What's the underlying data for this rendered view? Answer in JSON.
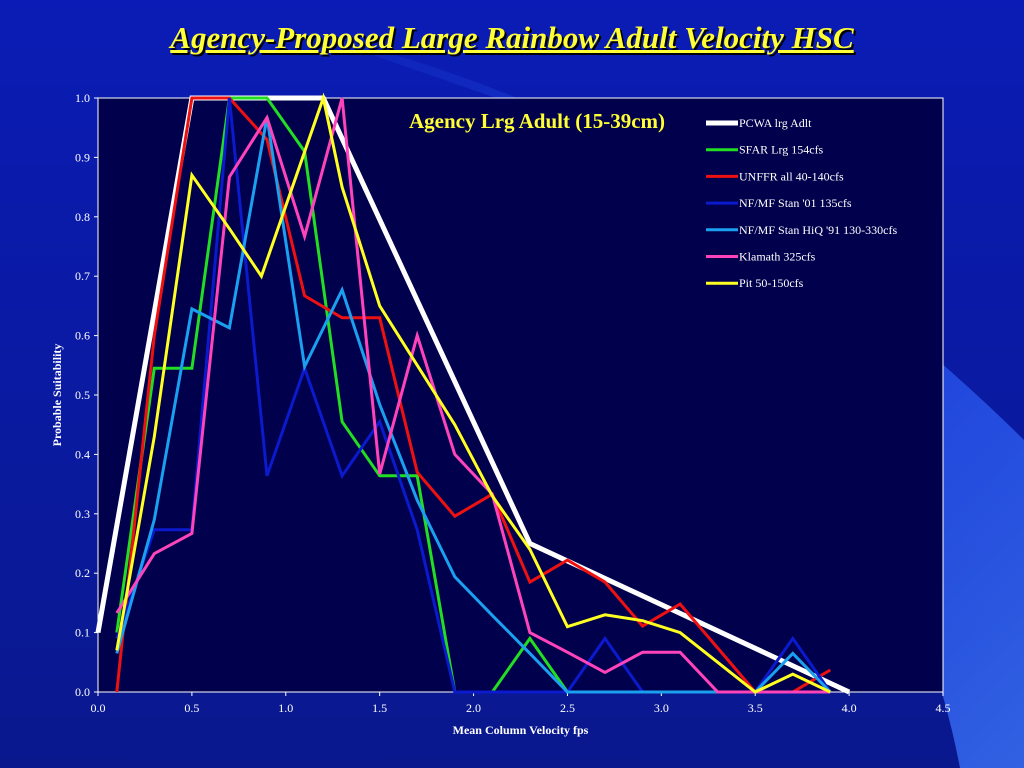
{
  "slide": {
    "title": "Agency-Proposed Large Rainbow Adult Velocity HSC"
  },
  "colors": {
    "background": "#0b1f9c",
    "plot_area": "#00004d",
    "title": "#ffff33",
    "axis_text": "#ffffff"
  },
  "chart_data": {
    "type": "line",
    "title": "Agency Lrg Adult (15-39cm)",
    "xlabel": "Mean Column Velocity fps",
    "ylabel": "Probable Suitability",
    "xlim": [
      0,
      4.5
    ],
    "ylim": [
      0,
      1.0
    ],
    "xticks": [
      "0.0",
      "0.5",
      "1.0",
      "1.5",
      "2.0",
      "2.5",
      "3.0",
      "3.5",
      "4.0",
      "4.5"
    ],
    "yticks": [
      "0.0",
      "0.1",
      "0.2",
      "0.3",
      "0.4",
      "0.5",
      "0.6",
      "0.7",
      "0.8",
      "0.9",
      "1.0"
    ],
    "grid": false,
    "legend_position": "top-right",
    "series": [
      {
        "name": "PCWA lrg Adlt",
        "color": "#ffffff",
        "x": [
          0,
          0.5,
          1.2,
          2.3,
          4.0
        ],
        "y": [
          0.1,
          1.0,
          1.0,
          0.25,
          0
        ]
      },
      {
        "name": "SFAR Lrg  154cfs",
        "color": "#22dd22",
        "x": [
          0.1,
          0.3,
          0.5,
          0.7,
          0.9,
          1.1,
          1.3,
          1.5,
          1.7,
          1.9,
          2.1,
          2.3,
          2.5,
          2.7
        ],
        "y": [
          0.1,
          0.545,
          0.545,
          1.0,
          1.0,
          0.91,
          0.455,
          0.364,
          0.364,
          0,
          0,
          0.09,
          0,
          0
        ]
      },
      {
        "name": "UNFFR all 40-140cfs",
        "color": "#ee1111",
        "x": [
          0.1,
          0.3,
          0.5,
          0.7,
          0.9,
          1.1,
          1.3,
          1.5,
          1.7,
          1.9,
          2.1,
          2.3,
          2.5,
          2.7,
          2.9,
          3.1,
          3.3,
          3.5,
          3.7,
          3.9
        ],
        "y": [
          0,
          0.6,
          1.0,
          1.0,
          0.93,
          0.667,
          0.63,
          0.63,
          0.37,
          0.296,
          0.333,
          0.185,
          0.222,
          0.185,
          0.111,
          0.148,
          0.074,
          0,
          0,
          0.037
        ]
      },
      {
        "name": "NF/MF Stan '01 135cfs",
        "color": "#0b1acc",
        "x": [
          0.1,
          0.3,
          0.5,
          0.7,
          0.9,
          1.1,
          1.3,
          1.5,
          1.7,
          1.9,
          2.1,
          2.3,
          2.5,
          2.7,
          2.9,
          3.1,
          3.3,
          3.5,
          3.7,
          3.9
        ],
        "y": [
          0.09,
          0.273,
          0.273,
          1.0,
          0.364,
          0.545,
          0.364,
          0.455,
          0.273,
          0,
          0,
          0,
          0,
          0.09,
          0,
          0,
          0,
          0,
          0.09,
          0
        ]
      },
      {
        "name": "NF/MF Stan HiQ '91 130-330cfs",
        "color": "#1aa0ee",
        "x": [
          0.1,
          0.3,
          0.5,
          0.7,
          0.9,
          1.1,
          1.3,
          1.5,
          1.7,
          1.9,
          2.1,
          2.3,
          2.5,
          2.7,
          2.9,
          3.1,
          3.3,
          3.5,
          3.7,
          3.9
        ],
        "y": [
          0.065,
          0.29,
          0.645,
          0.613,
          0.968,
          0.548,
          0.677,
          0.484,
          0.323,
          0.194,
          0.129,
          0.065,
          0,
          0,
          0,
          0,
          0,
          0,
          0.065,
          0
        ]
      },
      {
        "name": "Klamath 325cfs",
        "color": "#ff44bb",
        "x": [
          0.1,
          0.3,
          0.5,
          0.7,
          0.9,
          1.1,
          1.3,
          1.5,
          1.7,
          1.9,
          2.1,
          2.3,
          2.5,
          2.7,
          2.9,
          3.1,
          3.3,
          3.5,
          3.7,
          3.9
        ],
        "y": [
          0.133,
          0.233,
          0.267,
          0.867,
          0.967,
          0.767,
          1.0,
          0.367,
          0.6,
          0.4,
          0.333,
          0.1,
          0.067,
          0.033,
          0.067,
          0.067,
          0,
          0,
          0,
          0
        ]
      },
      {
        "name": "Pit 50-150cfs",
        "color": "#ffff22",
        "x": [
          0.1,
          0.3,
          0.5,
          0.7,
          0.87,
          1.2,
          1.3,
          1.5,
          1.9,
          2.1,
          2.3,
          2.5,
          2.7,
          2.9,
          3.1,
          3.3,
          3.5,
          3.7,
          3.9
        ],
        "y": [
          0.07,
          0.43,
          0.87,
          0.78,
          0.7,
          1.0,
          0.85,
          0.65,
          0.45,
          0.33,
          0.24,
          0.11,
          0.13,
          0.12,
          0.1,
          0.05,
          0,
          0.03,
          0
        ]
      }
    ]
  }
}
